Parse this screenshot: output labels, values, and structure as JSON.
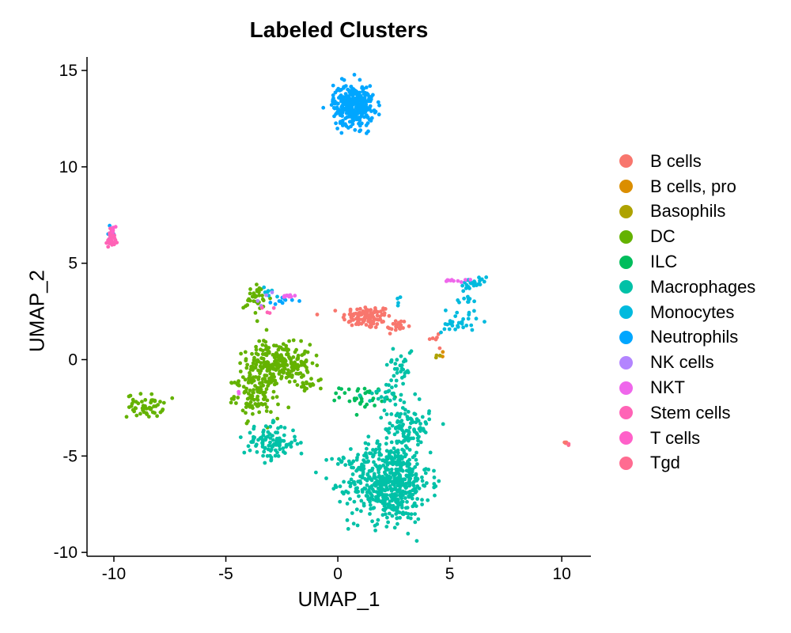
{
  "chart_data": {
    "type": "scatter",
    "title": "Labeled Clusters",
    "xlabel": "UMAP_1",
    "ylabel": "UMAP_2",
    "xlim": [
      -11.2,
      11.3
    ],
    "ylim": [
      -10.2,
      15.7
    ],
    "xticks": [
      -10,
      -5,
      0,
      5,
      10
    ],
    "yticks": [
      -10,
      -5,
      0,
      5,
      10,
      15
    ],
    "grid": false,
    "legend_position": "right",
    "series": [
      {
        "name": "B cells",
        "color": "#F8766D",
        "clusters": [
          {
            "cx": 1.3,
            "cy": 2.2,
            "sx": 0.55,
            "sy": 0.3,
            "n": 110
          },
          {
            "cx": 2.6,
            "cy": 1.7,
            "sx": 0.25,
            "sy": 0.2,
            "n": 20
          },
          {
            "cx": 10.2,
            "cy": -4.3,
            "sx": 0.05,
            "sy": 0.04,
            "n": 4
          },
          {
            "cx": 4.4,
            "cy": 1.0,
            "sx": 0.3,
            "sy": 0.3,
            "n": 6
          }
        ]
      },
      {
        "name": "B cells, pro",
        "color": "#DB8E00",
        "clusters": [
          {
            "cx": 4.6,
            "cy": 0.3,
            "sx": 0.1,
            "sy": 0.08,
            "n": 3
          }
        ]
      },
      {
        "name": "Basophils",
        "color": "#AEA200",
        "clusters": [
          {
            "cx": 4.5,
            "cy": 0.2,
            "sx": 0.1,
            "sy": 0.08,
            "n": 3
          }
        ]
      },
      {
        "name": "DC",
        "color": "#64B200",
        "clusters": [
          {
            "cx": -2.6,
            "cy": -0.2,
            "sx": 0.7,
            "sy": 0.5,
            "n": 220
          },
          {
            "cx": -3.6,
            "cy": -1.8,
            "sx": 0.5,
            "sy": 0.6,
            "n": 120
          },
          {
            "cx": -3.6,
            "cy": 3.1,
            "sx": 0.3,
            "sy": 0.4,
            "n": 35
          },
          {
            "cx": -8.6,
            "cy": -2.4,
            "sx": 0.4,
            "sy": 0.3,
            "n": 55
          },
          {
            "cx": -4.2,
            "cy": -1.2,
            "sx": 0.35,
            "sy": 0.08,
            "n": 12
          },
          {
            "cx": -3.3,
            "cy": 0.8,
            "sx": 0.15,
            "sy": 0.5,
            "n": 15
          },
          {
            "cx": -1.2,
            "cy": -1.3,
            "sx": 0.3,
            "sy": 0.2,
            "n": 18
          }
        ]
      },
      {
        "name": "ILC",
        "color": "#00BD5C",
        "clusters": [
          {
            "cx": 1.1,
            "cy": -1.9,
            "sx": 0.5,
            "sy": 0.25,
            "n": 35
          }
        ]
      },
      {
        "name": "Macrophages",
        "color": "#00C1A7",
        "clusters": [
          {
            "cx": 2.3,
            "cy": -6.4,
            "sx": 0.9,
            "sy": 1.0,
            "n": 560
          },
          {
            "cx": 3.1,
            "cy": -3.6,
            "sx": 0.5,
            "sy": 0.6,
            "n": 110
          },
          {
            "cx": -3.0,
            "cy": -4.3,
            "sx": 0.6,
            "sy": 0.45,
            "n": 110
          },
          {
            "cx": 2.8,
            "cy": -0.2,
            "sx": 0.3,
            "sy": 0.5,
            "n": 30
          },
          {
            "cx": 2.2,
            "cy": -1.9,
            "sx": 0.5,
            "sy": 0.4,
            "n": 30
          },
          {
            "cx": 0.8,
            "cy": -5.3,
            "sx": 0.6,
            "sy": 0.3,
            "n": 20
          }
        ]
      },
      {
        "name": "Monocytes",
        "color": "#00BADE",
        "clusters": [
          {
            "cx": 5.4,
            "cy": 2.0,
            "sx": 0.4,
            "sy": 0.4,
            "n": 30
          },
          {
            "cx": 6.1,
            "cy": 3.9,
            "sx": 0.35,
            "sy": 0.15,
            "n": 25
          },
          {
            "cx": 5.7,
            "cy": 3.0,
            "sx": 0.2,
            "sy": 0.4,
            "n": 12
          },
          {
            "cx": -3.0,
            "cy": 3.6,
            "sx": 0.2,
            "sy": 0.2,
            "n": 8
          },
          {
            "cx": 2.8,
            "cy": 3.2,
            "sx": 0.1,
            "sy": 0.15,
            "n": 4
          }
        ]
      },
      {
        "name": "Neutrophils",
        "color": "#00A6FF",
        "clusters": [
          {
            "cx": 0.7,
            "cy": 13.2,
            "sx": 0.45,
            "sy": 0.55,
            "n": 320
          },
          {
            "cx": -2.5,
            "cy": 3.0,
            "sx": 0.3,
            "sy": 0.12,
            "n": 10
          },
          {
            "cx": -10.1,
            "cy": 6.4,
            "sx": 0.08,
            "sy": 0.2,
            "n": 4
          }
        ]
      },
      {
        "name": "NK cells",
        "color": "#B385FF",
        "clusters": [
          {
            "cx": -3.3,
            "cy": 3.2,
            "sx": 0.2,
            "sy": 0.2,
            "n": 4
          }
        ]
      },
      {
        "name": "NKT",
        "color": "#EF67EB",
        "clusters": [
          {
            "cx": 5.2,
            "cy": 4.1,
            "sx": 0.25,
            "sy": 0.04,
            "n": 10
          },
          {
            "cx": -2.1,
            "cy": 3.3,
            "sx": 0.2,
            "sy": 0.05,
            "n": 10
          },
          {
            "cx": -4.5,
            "cy": -1.7,
            "sx": 0.05,
            "sy": 0.05,
            "n": 2
          }
        ]
      },
      {
        "name": "Stem cells",
        "color": "#FF63B6",
        "clusters": [
          {
            "cx": -10.1,
            "cy": 6.3,
            "sx": 0.1,
            "sy": 0.3,
            "n": 25
          },
          {
            "cx": -3.1,
            "cy": 2.6,
            "sx": 0.15,
            "sy": 0.15,
            "n": 4
          }
        ]
      },
      {
        "name": "T cells",
        "color": "#FF61C9",
        "clusters": [
          {
            "cx": -10.0,
            "cy": 6.5,
            "sx": 0.05,
            "sy": 0.2,
            "n": 4
          }
        ]
      },
      {
        "name": "Tgd",
        "color": "#FF6C91",
        "clusters": [
          {
            "cx": 10.3,
            "cy": -4.35,
            "sx": 0.05,
            "sy": 0.03,
            "n": 2
          }
        ]
      }
    ]
  }
}
